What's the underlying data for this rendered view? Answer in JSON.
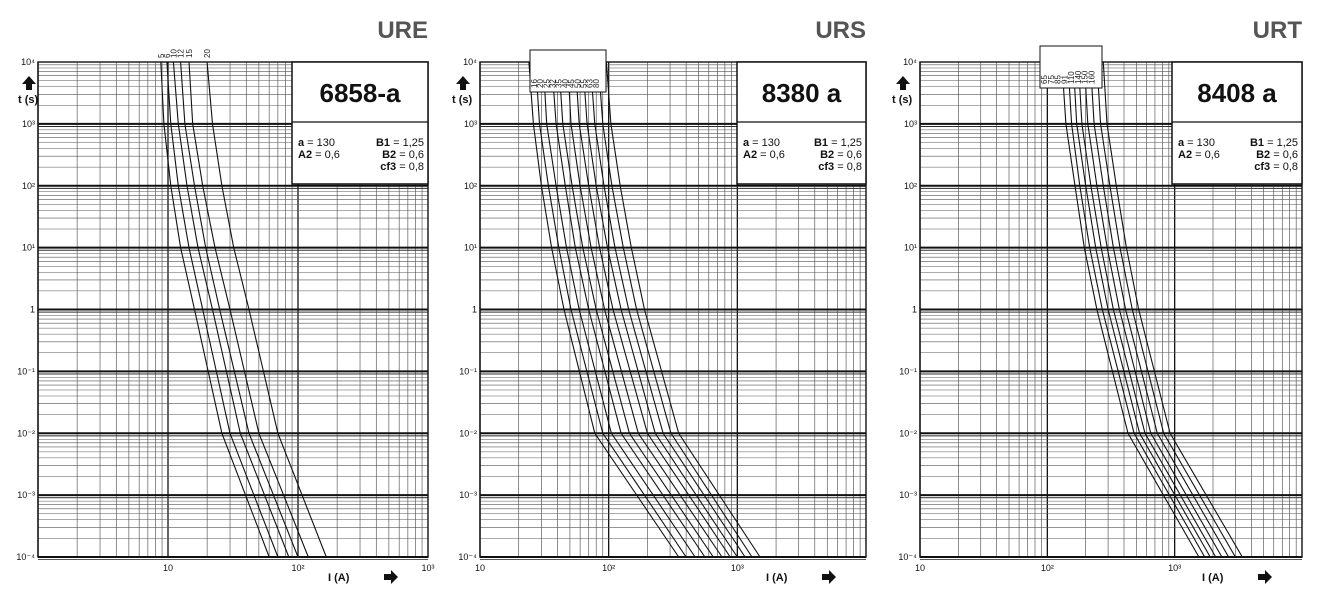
{
  "chart_data": [
    {
      "type": "line",
      "family": "URE",
      "reference": "6858-a",
      "parameters": [
        {
          "name": "a",
          "value": "130"
        },
        {
          "name": "B1",
          "value": "1,25"
        },
        {
          "name": "A2",
          "value": "0,6"
        },
        {
          "name": "B2",
          "value": "0,6"
        },
        {
          "name": "cf3",
          "value": "0,8"
        }
      ],
      "xlabel": "I (A)",
      "ylabel": "t (s)",
      "xscale": "log",
      "yscale": "log",
      "xlim": [
        1,
        1000
      ],
      "ylim": [
        0.0001,
        10000
      ],
      "xticks": [
        {
          "v": 10,
          "label": "10"
        },
        {
          "v": 100,
          "label": "10²"
        },
        {
          "v": 1000,
          "label": "10³"
        }
      ],
      "yticks": [
        {
          "v": 10000,
          "label": "10⁴"
        },
        {
          "v": 1000,
          "label": "10³"
        },
        {
          "v": 100,
          "label": "10²"
        },
        {
          "v": 10,
          "label": "10¹"
        },
        {
          "v": 1,
          "label": "1"
        },
        {
          "v": 0.1,
          "label": "10⁻¹"
        },
        {
          "v": 0.01,
          "label": "10⁻²"
        },
        {
          "v": 0.001,
          "label": "10⁻³"
        },
        {
          "v": 0.0001,
          "label": "10⁻⁴"
        }
      ],
      "grid": true,
      "series": [
        {
          "name": "5",
          "x": [
            8.8,
            9.3,
            10.5,
            12.5,
            16,
            26,
            60
          ],
          "y": [
            10000,
            1000,
            100,
            10,
            1,
            0.01,
            0.0001
          ]
        },
        {
          "name": "6",
          "x": [
            9.8,
            10.5,
            12,
            14.5,
            18.5,
            30,
            70
          ],
          "y": [
            10000,
            1000,
            100,
            10,
            1,
            0.01,
            0.0001
          ]
        },
        {
          "name": "10",
          "x": [
            11,
            12,
            14,
            17,
            22,
            36,
            85
          ],
          "y": [
            10000,
            1000,
            100,
            10,
            1,
            0.01,
            0.0001
          ]
        },
        {
          "name": "12",
          "x": [
            12.5,
            13.5,
            16,
            19.5,
            25,
            42,
            100
          ],
          "y": [
            10000,
            1000,
            100,
            10,
            1,
            0.01,
            0.0001
          ]
        },
        {
          "name": "15",
          "x": [
            14.5,
            15.5,
            18.5,
            23,
            30,
            50,
            120
          ],
          "y": [
            10000,
            1000,
            100,
            10,
            1,
            0.01,
            0.0001
          ]
        },
        {
          "name": "20",
          "x": [
            20,
            22,
            26,
            32,
            42,
            70,
            165
          ],
          "y": [
            10000,
            1000,
            100,
            10,
            1,
            0.01,
            0.0001
          ]
        }
      ]
    },
    {
      "type": "line",
      "family": "URS",
      "reference": "8380 a",
      "parameters": [
        {
          "name": "a",
          "value": "130"
        },
        {
          "name": "B1",
          "value": "1,25"
        },
        {
          "name": "A2",
          "value": "0,6"
        },
        {
          "name": "B2",
          "value": "0,6"
        },
        {
          "name": "cf3",
          "value": "0,8"
        }
      ],
      "xlabel": "I (A)",
      "ylabel": "t (s)",
      "xscale": "log",
      "yscale": "log",
      "xlim": [
        10,
        10000
      ],
      "ylim": [
        0.0001,
        10000
      ],
      "xticks": [
        {
          "v": 10,
          "label": "10"
        },
        {
          "v": 100,
          "label": "10²"
        },
        {
          "v": 1000,
          "label": "10³"
        }
      ],
      "yticks": [
        {
          "v": 10000,
          "label": "10⁴"
        },
        {
          "v": 1000,
          "label": "10³"
        },
        {
          "v": 100,
          "label": "10²"
        },
        {
          "v": 10,
          "label": "10¹"
        },
        {
          "v": 1,
          "label": "1"
        },
        {
          "v": 0.1,
          "label": "10⁻¹"
        },
        {
          "v": 0.01,
          "label": "10⁻²"
        },
        {
          "v": 0.001,
          "label": "10⁻³"
        },
        {
          "v": 0.0001,
          "label": "10⁻⁴"
        }
      ],
      "grid": true,
      "series": [
        {
          "name": "16",
          "x": [
            24,
            26,
            30,
            36,
            45,
            78,
            350
          ],
          "y": [
            10000,
            1000,
            100,
            10,
            1,
            0.01,
            0.0001
          ]
        },
        {
          "name": "20",
          "x": [
            27,
            29,
            34,
            41,
            51,
            90,
            400
          ],
          "y": [
            10000,
            1000,
            100,
            10,
            1,
            0.01,
            0.0001
          ]
        },
        {
          "name": "25",
          "x": [
            31,
            33,
            39,
            47,
            59,
            105,
            470
          ],
          "y": [
            10000,
            1000,
            100,
            10,
            1,
            0.01,
            0.0001
          ]
        },
        {
          "name": "32",
          "x": [
            36,
            39,
            46,
            55,
            70,
            125,
            560
          ],
          "y": [
            10000,
            1000,
            100,
            10,
            1,
            0.01,
            0.0001
          ]
        },
        {
          "name": "35",
          "x": [
            41,
            44,
            52,
            63,
            80,
            145,
            650
          ],
          "y": [
            10000,
            1000,
            100,
            10,
            1,
            0.01,
            0.0001
          ]
        },
        {
          "name": "40",
          "x": [
            48,
            51,
            60,
            73,
            93,
            170,
            760
          ],
          "y": [
            10000,
            1000,
            100,
            10,
            1,
            0.01,
            0.0001
          ]
        },
        {
          "name": "45",
          "x": [
            55,
            59,
            70,
            85,
            108,
            200,
            880
          ],
          "y": [
            10000,
            1000,
            100,
            10,
            1,
            0.01,
            0.0001
          ]
        },
        {
          "name": "50",
          "x": [
            63,
            68,
            80,
            98,
            125,
            230,
            1000
          ],
          "y": [
            10000,
            1000,
            100,
            10,
            1,
            0.01,
            0.0001
          ]
        },
        {
          "name": "55",
          "x": [
            72,
            78,
            92,
            112,
            143,
            265,
            1150
          ],
          "y": [
            10000,
            1000,
            100,
            10,
            1,
            0.01,
            0.0001
          ]
        },
        {
          "name": "63",
          "x": [
            83,
            90,
            106,
            130,
            165,
            305,
            1300
          ],
          "y": [
            10000,
            1000,
            100,
            10,
            1,
            0.01,
            0.0001
          ]
        },
        {
          "name": "80",
          "x": [
            96,
            104,
            123,
            150,
            190,
            350,
            1500
          ],
          "y": [
            10000,
            1000,
            100,
            10,
            1,
            0.01,
            0.0001
          ]
        }
      ]
    },
    {
      "type": "line",
      "family": "URT",
      "reference": "8408 a",
      "parameters": [
        {
          "name": "a",
          "value": "130"
        },
        {
          "name": "B1",
          "value": "1,25"
        },
        {
          "name": "A2",
          "value": "0,6"
        },
        {
          "name": "B2",
          "value": "0,6"
        },
        {
          "name": "cf3",
          "value": "0,8"
        }
      ],
      "xlabel": "I (A)",
      "ylabel": "t (s)",
      "xscale": "log",
      "yscale": "log",
      "xlim": [
        10,
        10000
      ],
      "ylim": [
        0.0001,
        10000
      ],
      "xticks": [
        {
          "v": 10,
          "label": "10"
        },
        {
          "v": 100,
          "label": "10²"
        },
        {
          "v": 1000,
          "label": "10³"
        }
      ],
      "yticks": [
        {
          "v": 10000,
          "label": "10⁴"
        },
        {
          "v": 1000,
          "label": "10³"
        },
        {
          "v": 100,
          "label": "10²"
        },
        {
          "v": 10,
          "label": "10¹"
        },
        {
          "v": 1,
          "label": "1"
        },
        {
          "v": 0.1,
          "label": "10⁻¹"
        },
        {
          "v": 0.01,
          "label": "10⁻²"
        },
        {
          "v": 0.001,
          "label": "10⁻³"
        },
        {
          "v": 0.0001,
          "label": "10⁻⁴"
        }
      ],
      "grid": true,
      "series": [
        {
          "name": "65",
          "x": [
            130,
            140,
            165,
            195,
            245,
            430,
            1550
          ],
          "y": [
            10000,
            1000,
            100,
            10,
            1,
            0.01,
            0.0001
          ]
        },
        {
          "name": "75",
          "x": [
            145,
            155,
            180,
            215,
            270,
            480,
            1720
          ],
          "y": [
            10000,
            1000,
            100,
            10,
            1,
            0.01,
            0.0001
          ]
        },
        {
          "name": "85",
          "x": [
            160,
            170,
            200,
            240,
            300,
            530,
            1900
          ],
          "y": [
            10000,
            1000,
            100,
            10,
            1,
            0.01,
            0.0001
          ]
        },
        {
          "name": "91",
          "x": [
            175,
            187,
            220,
            265,
            330,
            585,
            2100
          ],
          "y": [
            10000,
            1000,
            100,
            10,
            1,
            0.01,
            0.0001
          ]
        },
        {
          "name": "110",
          "x": [
            195,
            208,
            245,
            295,
            368,
            650,
            2350
          ],
          "y": [
            10000,
            1000,
            100,
            10,
            1,
            0.01,
            0.0001
          ]
        },
        {
          "name": "140",
          "x": [
            218,
            233,
            275,
            330,
            412,
            730,
            2650
          ],
          "y": [
            10000,
            1000,
            100,
            10,
            1,
            0.01,
            0.0001
          ]
        },
        {
          "name": "150",
          "x": [
            245,
            262,
            310,
            372,
            465,
            820,
            3000
          ],
          "y": [
            10000,
            1000,
            100,
            10,
            1,
            0.01,
            0.0001
          ]
        },
        {
          "name": "160",
          "x": [
            275,
            294,
            348,
            418,
            522,
            920,
            3400
          ],
          "y": [
            10000,
            1000,
            100,
            10,
            1,
            0.01,
            0.0001
          ]
        }
      ]
    }
  ]
}
